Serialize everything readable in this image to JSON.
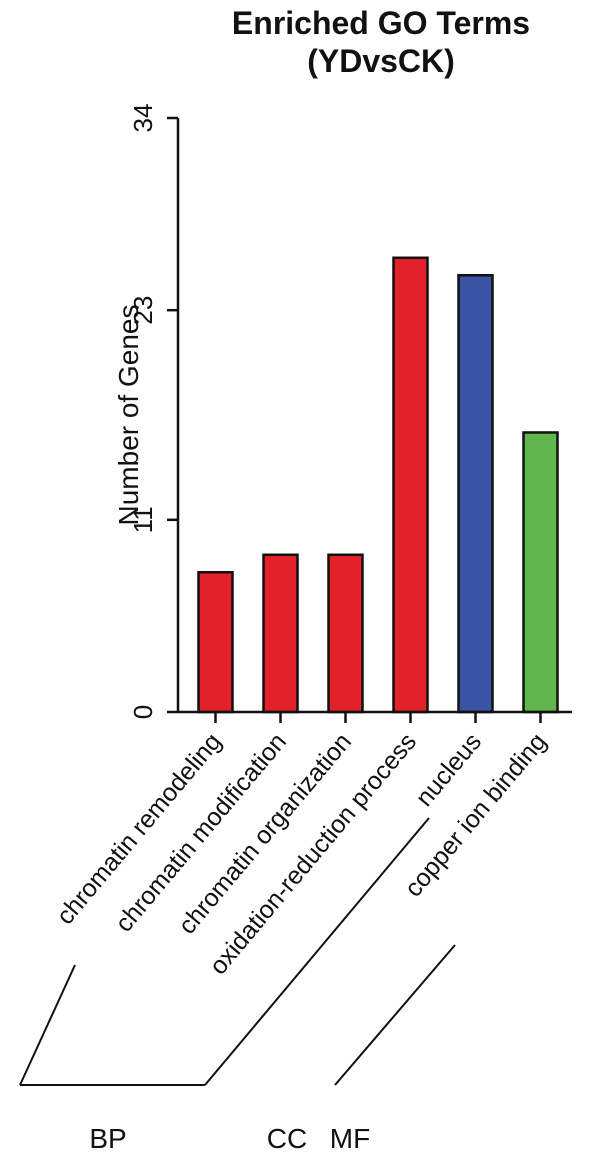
{
  "chart_data": {
    "type": "bar",
    "title_line1": "Enriched GO Terms",
    "title_line2": "(YDvsCK)",
    "ylabel": "Number of Genes",
    "xlabel": "",
    "categories": [
      "chromatin remodeling",
      "chromatin modification",
      "chromatin organization",
      "oxidation-reduction process",
      "nucleus",
      "copper ion binding"
    ],
    "values": [
      8,
      9,
      9,
      26,
      25,
      16
    ],
    "bar_colors": [
      "#e32128",
      "#e32128",
      "#e32128",
      "#e32128",
      "#3a53a4",
      "#5fb64c"
    ],
    "bar_outline_color": "#111111",
    "ylim": [
      0,
      34
    ],
    "yticks": [
      0,
      11,
      23,
      34
    ],
    "grid": false,
    "legend": false,
    "groups": [
      {
        "label": "BP",
        "categories_span": [
          0,
          3
        ]
      },
      {
        "label": "CC",
        "categories_span": [
          4,
          4
        ]
      },
      {
        "label": "MF",
        "categories_span": [
          5,
          5
        ]
      }
    ]
  }
}
